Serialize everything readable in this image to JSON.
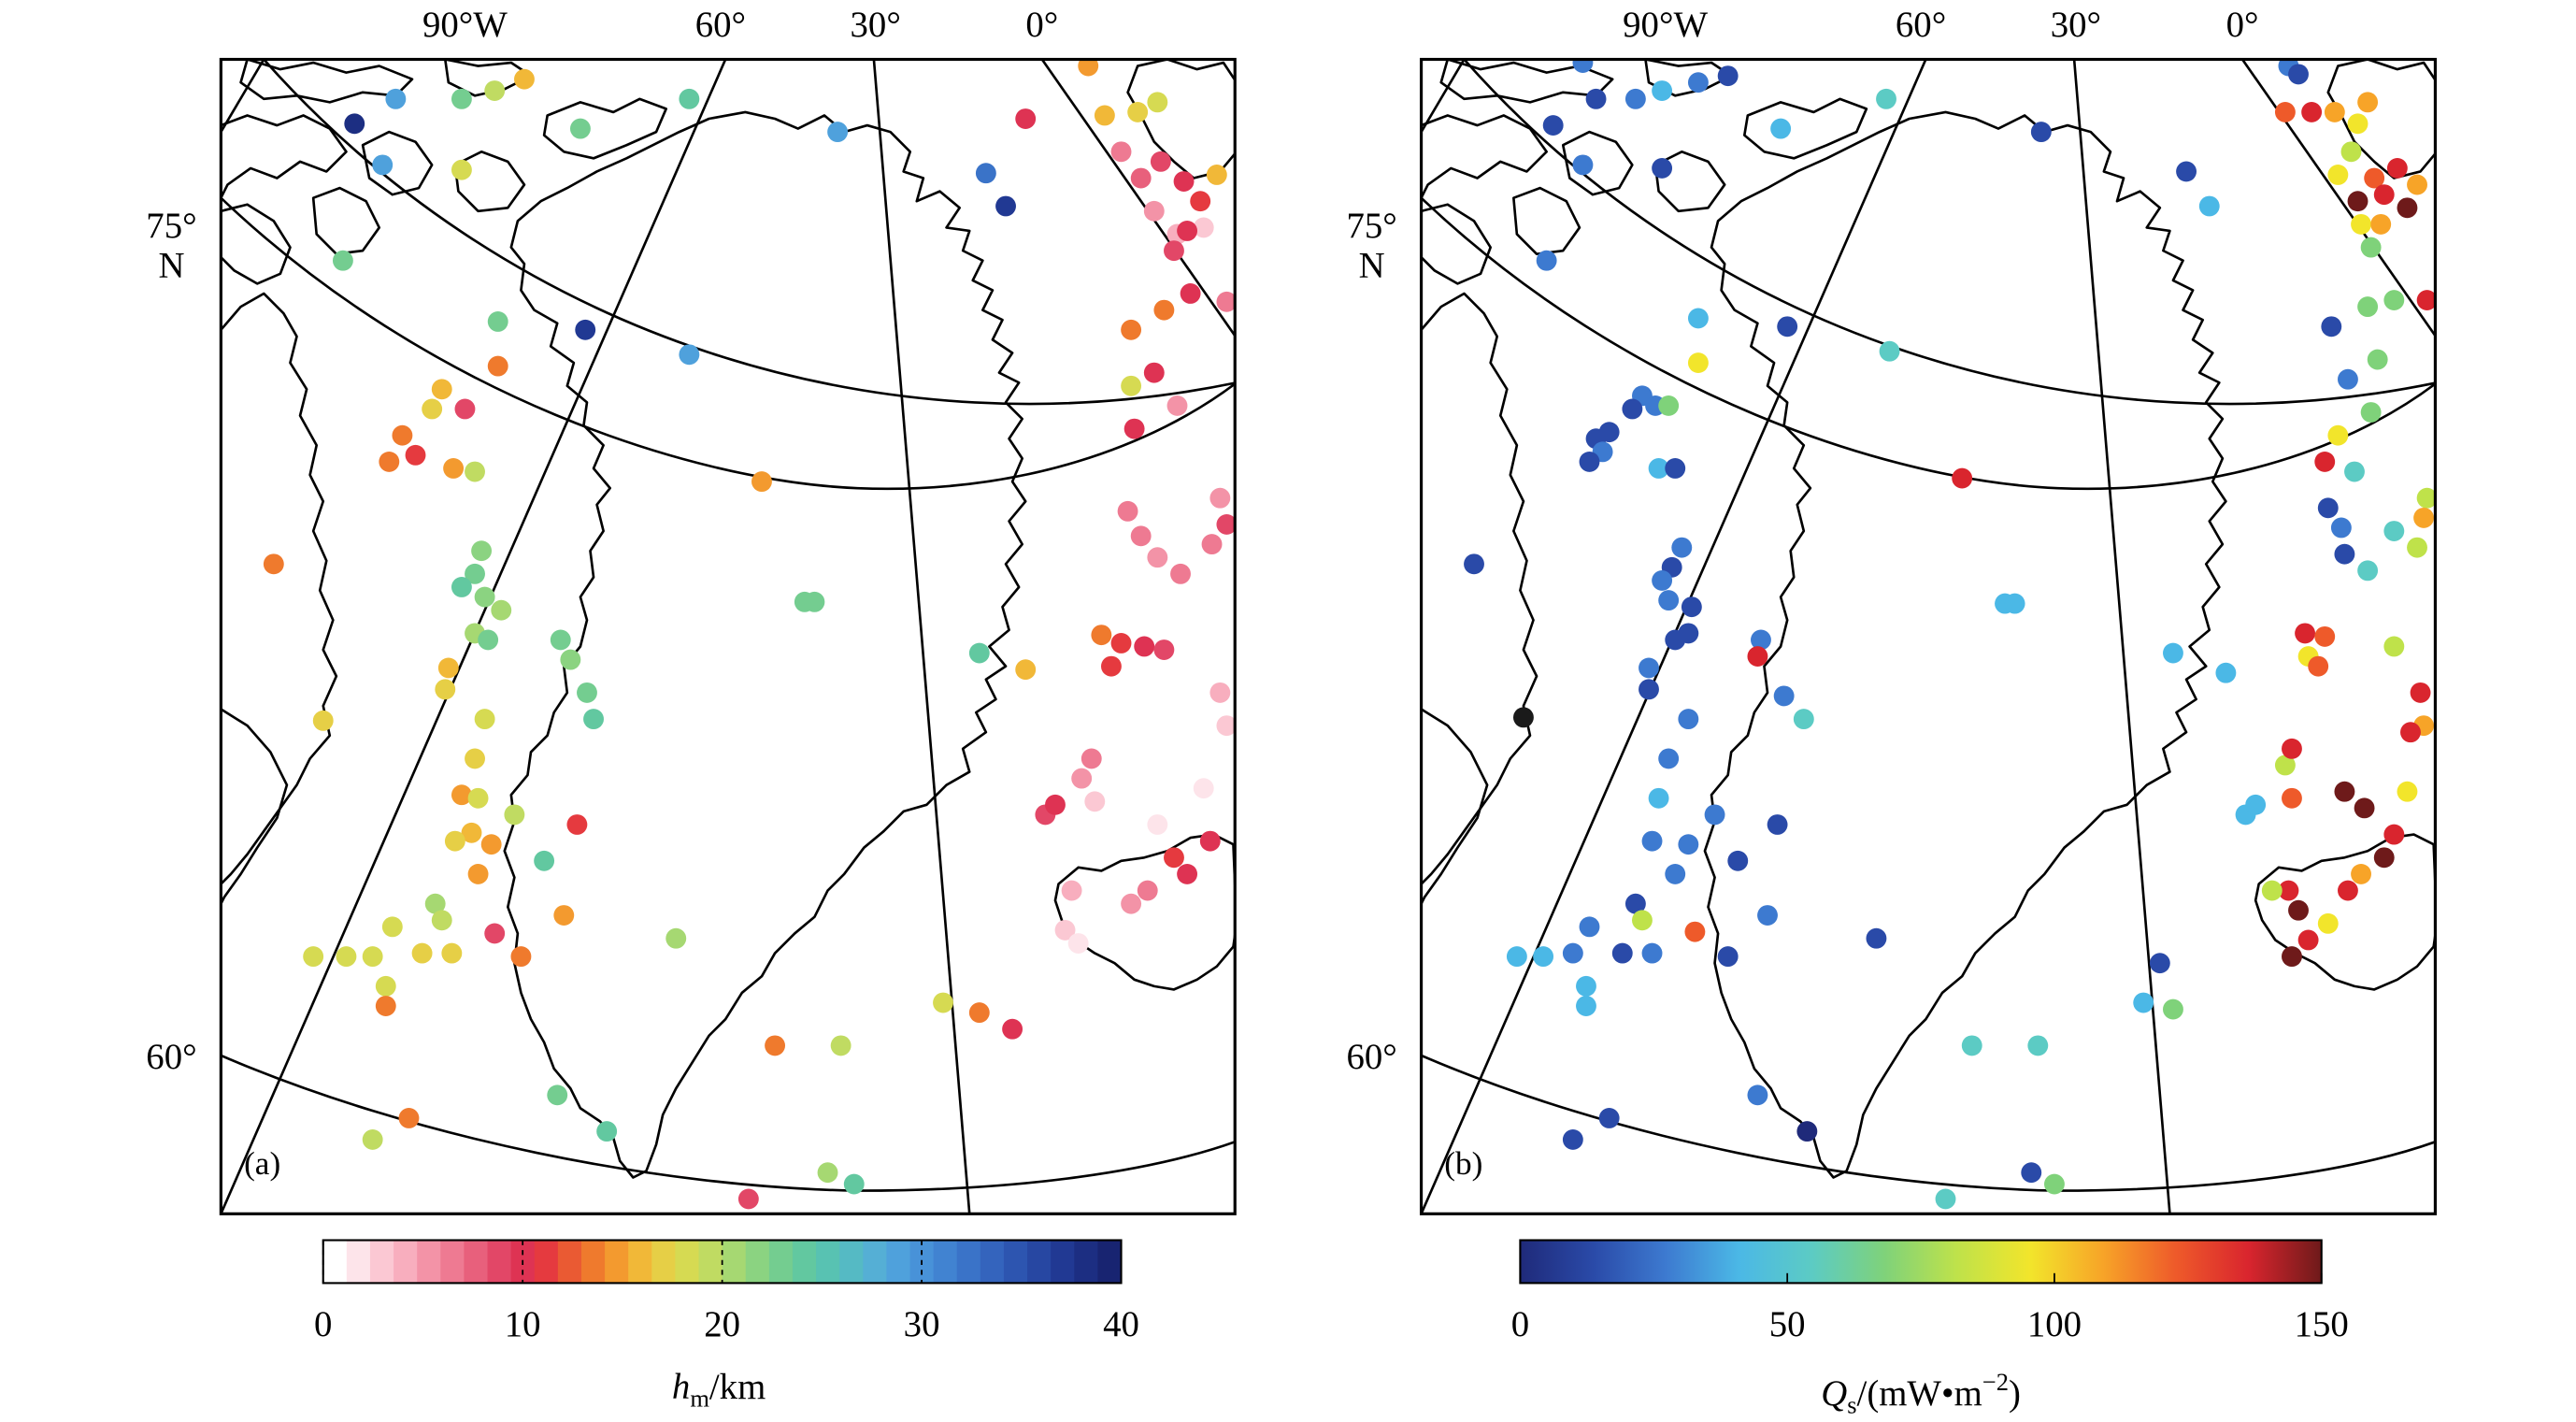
{
  "panels": [
    {
      "id": "a",
      "panel_label": "(a)",
      "top_labels": [
        "90°W",
        "60°",
        "30°",
        "0°"
      ],
      "lat_labels": [
        {
          "deg": "75°",
          "hemi": "N"
        },
        {
          "deg": "60°",
          "hemi": ""
        }
      ],
      "colorbar": {
        "type": "discrete",
        "min": 0,
        "max": 40,
        "ticks": [
          "0",
          "10",
          "20",
          "30",
          "40"
        ],
        "label_var": "h",
        "label_sub": "m",
        "label_unit": "/km",
        "colors": [
          "#ffffff",
          "#fde4ea",
          "#fbc8d3",
          "#f8aebe",
          "#f393a7",
          "#ee7a92",
          "#e8607c",
          "#e24767",
          "#de3353",
          "#e53a3f",
          "#ea5a33",
          "#ef7a2d",
          "#f39a2f",
          "#f1b838",
          "#e6cf46",
          "#d6da52",
          "#c0db62",
          "#a6d872",
          "#8bd381",
          "#74cd90",
          "#62c8a0",
          "#58c2b2",
          "#55bac4",
          "#55afd5",
          "#4fa1dc",
          "#4892d8",
          "#4183d1",
          "#3a73c8",
          "#3464bd",
          "#2d55b0",
          "#2747a2",
          "#213993",
          "#1c2e82",
          "#182471"
        ]
      }
    },
    {
      "id": "b",
      "panel_label": "(b)",
      "top_labels": [
        "90°W",
        "60°",
        "30°",
        "0°"
      ],
      "lat_labels": [
        {
          "deg": "75°",
          "hemi": "N"
        },
        {
          "deg": "60°",
          "hemi": ""
        }
      ],
      "colorbar": {
        "type": "continuous",
        "min": 0,
        "max": 150,
        "ticks": [
          "0",
          "50",
          "100",
          "150"
        ],
        "label_var": "Q",
        "label_sub": "s",
        "label_unit": "/(mW•m",
        "label_sup": "−2",
        "label_close": ")",
        "stops": [
          "#1f2a7a",
          "#2a4aa8",
          "#3d7ad0",
          "#4bb8e6",
          "#5ccbc4",
          "#7fd27a",
          "#bfe24a",
          "#f2e52b",
          "#f7a428",
          "#ee5a2a",
          "#d9252e",
          "#6e1a1a"
        ]
      }
    }
  ],
  "map_data": {
    "panel_a_points": [
      [
        215,
        75,
        "#1c2e82"
      ],
      [
        240,
        60,
        "#4fa1dc"
      ],
      [
        280,
        60,
        "#74cd90"
      ],
      [
        300,
        55,
        "#c0db62"
      ],
      [
        318,
        48,
        "#f1b838"
      ],
      [
        232,
        100,
        "#4fa1dc"
      ],
      [
        280,
        103,
        "#d6da52"
      ],
      [
        352,
        78,
        "#74cd90"
      ],
      [
        418,
        60,
        "#62c8a0"
      ],
      [
        508,
        80,
        "#4fa1dc"
      ],
      [
        622,
        72,
        "#de3353"
      ],
      [
        598,
        105,
        "#3a73c8"
      ],
      [
        610,
        125,
        "#213993"
      ],
      [
        660,
        40,
        "#f39a2f"
      ],
      [
        670,
        70,
        "#f1b838"
      ],
      [
        690,
        68,
        "#e6cf46"
      ],
      [
        702,
        62,
        "#d6da52"
      ],
      [
        680,
        92,
        "#ee7a92"
      ],
      [
        692,
        108,
        "#e8607c"
      ],
      [
        704,
        98,
        "#e24767"
      ],
      [
        718,
        110,
        "#de3353"
      ],
      [
        728,
        122,
        "#e53a3f"
      ],
      [
        738,
        106,
        "#f1b838"
      ],
      [
        700,
        128,
        "#f393a7"
      ],
      [
        714,
        142,
        "#f8aebe"
      ],
      [
        730,
        138,
        "#fbc8d3"
      ],
      [
        208,
        158,
        "#74cd90"
      ],
      [
        302,
        195,
        "#74cd90"
      ],
      [
        355,
        200,
        "#213993"
      ],
      [
        418,
        215,
        "#4fa1dc"
      ],
      [
        302,
        222,
        "#ef7a2d"
      ],
      [
        268,
        236,
        "#f1b838"
      ],
      [
        262,
        248,
        "#e6cf46"
      ],
      [
        282,
        248,
        "#e24767"
      ],
      [
        244,
        264,
        "#ef7a2d"
      ],
      [
        236,
        280,
        "#ef7a2d"
      ],
      [
        252,
        276,
        "#e53a3f"
      ],
      [
        275,
        284,
        "#f39a2f"
      ],
      [
        288,
        286,
        "#c0db62"
      ],
      [
        462,
        292,
        "#f39a2f"
      ],
      [
        720,
        140,
        "#de3353"
      ],
      [
        712,
        152,
        "#e24767"
      ],
      [
        706,
        188,
        "#ef7a2d"
      ],
      [
        722,
        178,
        "#de3353"
      ],
      [
        744,
        183,
        "#ee7a92"
      ],
      [
        686,
        200,
        "#ef7a2d"
      ],
      [
        700,
        226,
        "#de3353"
      ],
      [
        686,
        234,
        "#d6da52"
      ],
      [
        714,
        246,
        "#f393a7"
      ],
      [
        688,
        260,
        "#de3353"
      ],
      [
        684,
        310,
        "#ee7a92"
      ],
      [
        740,
        302,
        "#f393a7"
      ],
      [
        744,
        318,
        "#e24767"
      ],
      [
        735,
        330,
        "#ee7a92"
      ],
      [
        692,
        325,
        "#ee7a92"
      ],
      [
        702,
        338,
        "#f393a7"
      ],
      [
        716,
        348,
        "#ee7a92"
      ],
      [
        166,
        342,
        "#ef7a2d"
      ],
      [
        292,
        334,
        "#8bd381"
      ],
      [
        288,
        348,
        "#74cd90"
      ],
      [
        280,
        356,
        "#62c8a0"
      ],
      [
        294,
        362,
        "#8bd381"
      ],
      [
        304,
        370,
        "#a6d872"
      ],
      [
        288,
        384,
        "#a6d872"
      ],
      [
        296,
        388,
        "#74cd90"
      ],
      [
        488,
        365,
        "#74cd90"
      ],
      [
        494,
        365,
        "#74cd90"
      ],
      [
        340,
        388,
        "#74cd90"
      ],
      [
        346,
        400,
        "#8bd381"
      ],
      [
        668,
        385,
        "#ef7a2d"
      ],
      [
        680,
        390,
        "#e53a3f"
      ],
      [
        694,
        392,
        "#de3353"
      ],
      [
        706,
        394,
        "#e24767"
      ],
      [
        674,
        404,
        "#e53a3f"
      ],
      [
        272,
        405,
        "#f1b838"
      ],
      [
        270,
        418,
        "#e6cf46"
      ],
      [
        196,
        437,
        "#e6cf46"
      ],
      [
        294,
        436,
        "#d6da52"
      ],
      [
        356,
        420,
        "#74cd90"
      ],
      [
        360,
        436,
        "#62c8a0"
      ],
      [
        594,
        396,
        "#62c8a0"
      ],
      [
        622,
        406,
        "#f1b838"
      ],
      [
        740,
        420,
        "#f8aebe"
      ],
      [
        744,
        440,
        "#fbc8d3"
      ],
      [
        662,
        460,
        "#ee7a92"
      ],
      [
        656,
        472,
        "#f393a7"
      ],
      [
        634,
        494,
        "#e24767"
      ],
      [
        640,
        488,
        "#de3353"
      ],
      [
        730,
        478,
        "#fde4ea"
      ],
      [
        288,
        460,
        "#e6cf46"
      ],
      [
        280,
        482,
        "#f39a2f"
      ],
      [
        290,
        484,
        "#d6da52"
      ],
      [
        286,
        505,
        "#f1b838"
      ],
      [
        312,
        494,
        "#c0db62"
      ],
      [
        350,
        500,
        "#e53a3f"
      ],
      [
        276,
        510,
        "#e6cf46"
      ],
      [
        298,
        512,
        "#f39a2f"
      ],
      [
        290,
        530,
        "#f39a2f"
      ],
      [
        330,
        522,
        "#62c8a0"
      ],
      [
        664,
        486,
        "#fbc8d3"
      ],
      [
        702,
        500,
        "#fde4ea"
      ],
      [
        712,
        520,
        "#e53a3f"
      ],
      [
        720,
        530,
        "#de3353"
      ],
      [
        734,
        510,
        "#de3353"
      ],
      [
        696,
        540,
        "#ee7a92"
      ],
      [
        686,
        548,
        "#f393a7"
      ],
      [
        650,
        540,
        "#f8aebe"
      ],
      [
        646,
        564,
        "#fbc8d3"
      ],
      [
        654,
        572,
        "#fde4ea"
      ],
      [
        264,
        548,
        "#a6d872"
      ],
      [
        268,
        558,
        "#c0db62"
      ],
      [
        238,
        562,
        "#d6da52"
      ],
      [
        256,
        578,
        "#e6cf46"
      ],
      [
        274,
        578,
        "#e6cf46"
      ],
      [
        300,
        566,
        "#e24767"
      ],
      [
        342,
        555,
        "#f39a2f"
      ],
      [
        316,
        580,
        "#ef7a2d"
      ],
      [
        190,
        580,
        "#d6da52"
      ],
      [
        210,
        580,
        "#d6da52"
      ],
      [
        226,
        580,
        "#d6da52"
      ],
      [
        234,
        598,
        "#d6da52"
      ],
      [
        234,
        610,
        "#ef7a2d"
      ],
      [
        410,
        569,
        "#a6d872"
      ],
      [
        572,
        608,
        "#d6da52"
      ],
      [
        594,
        614,
        "#ef7a2d"
      ],
      [
        614,
        624,
        "#de3353"
      ],
      [
        470,
        634,
        "#ef7a2d"
      ],
      [
        510,
        634,
        "#c0db62"
      ],
      [
        338,
        664,
        "#74cd90"
      ],
      [
        368,
        686,
        "#62c8a0"
      ],
      [
        248,
        678,
        "#ef7a2d"
      ],
      [
        226,
        691,
        "#c0db62"
      ],
      [
        502,
        711,
        "#a6d872"
      ],
      [
        518,
        718,
        "#62c8a0"
      ],
      [
        454,
        727,
        "#e24767"
      ]
    ],
    "panel_b_points": [
      [
        960,
        38,
        "#3d7ad0"
      ],
      [
        992,
        60,
        "#3d7ad0"
      ],
      [
        1008,
        55,
        "#4bb8e6"
      ],
      [
        1030,
        50,
        "#3d7ad0"
      ],
      [
        1048,
        46,
        "#2a4aa8"
      ],
      [
        942,
        76,
        "#2a4aa8"
      ],
      [
        968,
        60,
        "#2a4aa8"
      ],
      [
        960,
        100,
        "#3d7ad0"
      ],
      [
        1008,
        102,
        "#2a4aa8"
      ],
      [
        1080,
        78,
        "#4bb8e6"
      ],
      [
        1144,
        60,
        "#5ccbc4"
      ],
      [
        1238,
        80,
        "#2a4aa8"
      ],
      [
        1388,
        40,
        "#3d7ad0"
      ],
      [
        1394,
        45,
        "#2a4aa8"
      ],
      [
        1386,
        68,
        "#ee5a2a"
      ],
      [
        1402,
        68,
        "#d9252e"
      ],
      [
        1416,
        68,
        "#f7a428"
      ],
      [
        1430,
        75,
        "#f2e52b"
      ],
      [
        1436,
        62,
        "#f7a428"
      ],
      [
        1426,
        92,
        "#bfe24a"
      ],
      [
        1418,
        106,
        "#f2e52b"
      ],
      [
        1440,
        108,
        "#ee5a2a"
      ],
      [
        1454,
        102,
        "#d9252e"
      ],
      [
        1466,
        112,
        "#f7a428"
      ],
      [
        1430,
        122,
        "#6e1a1a"
      ],
      [
        1446,
        118,
        "#d9252e"
      ],
      [
        1460,
        126,
        "#6e1a1a"
      ],
      [
        1326,
        104,
        "#2a4aa8"
      ],
      [
        1340,
        125,
        "#4bb8e6"
      ],
      [
        1432,
        136,
        "#f2e52b"
      ],
      [
        1444,
        136,
        "#f7a428"
      ],
      [
        1438,
        150,
        "#7fd27a"
      ],
      [
        938,
        158,
        "#3d7ad0"
      ],
      [
        1030,
        193,
        "#4bb8e6"
      ],
      [
        1084,
        198,
        "#2a4aa8"
      ],
      [
        1146,
        213,
        "#5ccbc4"
      ],
      [
        1030,
        220,
        "#f2e52b"
      ],
      [
        1436,
        186,
        "#7fd27a"
      ],
      [
        1452,
        182,
        "#7fd27a"
      ],
      [
        1472,
        182,
        "#d9252e"
      ],
      [
        1414,
        198,
        "#2a4aa8"
      ],
      [
        1442,
        218,
        "#7fd27a"
      ],
      [
        1424,
        230,
        "#3d7ad0"
      ],
      [
        1438,
        250,
        "#7fd27a"
      ],
      [
        1418,
        264,
        "#f2e52b"
      ],
      [
        1410,
        280,
        "#d9252e"
      ],
      [
        1428,
        286,
        "#5ccbc4"
      ],
      [
        1472,
        302,
        "#bfe24a"
      ],
      [
        1470,
        314,
        "#f7a428"
      ],
      [
        1412,
        308,
        "#2a4aa8"
      ],
      [
        1420,
        320,
        "#3d7ad0"
      ],
      [
        1452,
        322,
        "#5ccbc4"
      ],
      [
        1466,
        332,
        "#bfe24a"
      ],
      [
        1422,
        336,
        "#2a4aa8"
      ],
      [
        1436,
        346,
        "#5ccbc4"
      ],
      [
        996,
        240,
        "#3d7ad0"
      ],
      [
        990,
        248,
        "#2a4aa8"
      ],
      [
        1004,
        246,
        "#3d7ad0"
      ],
      [
        1012,
        246,
        "#7fd27a"
      ],
      [
        976,
        262,
        "#2a4aa8"
      ],
      [
        968,
        266,
        "#2a4aa8"
      ],
      [
        972,
        274,
        "#3d7ad0"
      ],
      [
        964,
        280,
        "#2a4aa8"
      ],
      [
        1006,
        284,
        "#4bb8e6"
      ],
      [
        1016,
        284,
        "#2a4aa8"
      ],
      [
        1190,
        290,
        "#d9252e"
      ],
      [
        894,
        342,
        "#2a4aa8"
      ],
      [
        1020,
        332,
        "#3d7ad0"
      ],
      [
        1014,
        344,
        "#2a4aa8"
      ],
      [
        1008,
        352,
        "#3d7ad0"
      ],
      [
        1012,
        364,
        "#3d7ad0"
      ],
      [
        1026,
        368,
        "#2a4aa8"
      ],
      [
        1216,
        366,
        "#4bb8e6"
      ],
      [
        1222,
        366,
        "#4bb8e6"
      ],
      [
        1068,
        388,
        "#3d7ad0"
      ],
      [
        1066,
        398,
        "#d9252e"
      ],
      [
        1024,
        384,
        "#2a4aa8"
      ],
      [
        1016,
        388,
        "#2a4aa8"
      ],
      [
        1398,
        384,
        "#d9252e"
      ],
      [
        1410,
        386,
        "#ee5a2a"
      ],
      [
        1400,
        398,
        "#f2e52b"
      ],
      [
        1452,
        392,
        "#bfe24a"
      ],
      [
        1318,
        396,
        "#4bb8e6"
      ],
      [
        1350,
        408,
        "#4bb8e6"
      ],
      [
        1406,
        404,
        "#ee5a2a"
      ],
      [
        1000,
        405,
        "#3d7ad0"
      ],
      [
        1000,
        418,
        "#2a4aa8"
      ],
      [
        924,
        435,
        "#1a1a1a"
      ],
      [
        1024,
        436,
        "#3d7ad0"
      ],
      [
        1082,
        422,
        "#3d7ad0"
      ],
      [
        1094,
        436,
        "#5ccbc4"
      ],
      [
        1468,
        420,
        "#d9252e"
      ],
      [
        1470,
        440,
        "#f7a428"
      ],
      [
        1462,
        444,
        "#d9252e"
      ],
      [
        1386,
        464,
        "#bfe24a"
      ],
      [
        1390,
        454,
        "#d9252e"
      ],
      [
        1362,
        494,
        "#4bb8e6"
      ],
      [
        1368,
        488,
        "#4bb8e6"
      ],
      [
        1422,
        480,
        "#6e1a1a"
      ],
      [
        1434,
        490,
        "#6e1a1a"
      ],
      [
        1460,
        480,
        "#f2e52b"
      ],
      [
        1012,
        460,
        "#3d7ad0"
      ],
      [
        1006,
        484,
        "#4bb8e6"
      ],
      [
        1040,
        494,
        "#3d7ad0"
      ],
      [
        1078,
        500,
        "#2a4aa8"
      ],
      [
        1002,
        510,
        "#3d7ad0"
      ],
      [
        1024,
        512,
        "#3d7ad0"
      ],
      [
        1016,
        530,
        "#3d7ad0"
      ],
      [
        1054,
        522,
        "#2a4aa8"
      ],
      [
        1390,
        484,
        "#ee5a2a"
      ],
      [
        1452,
        506,
        "#d9252e"
      ],
      [
        1446,
        520,
        "#6e1a1a"
      ],
      [
        1432,
        530,
        "#f7a428"
      ],
      [
        1424,
        540,
        "#d9252e"
      ],
      [
        1388,
        540,
        "#d9252e"
      ],
      [
        1394,
        552,
        "#6e1a1a"
      ],
      [
        1412,
        560,
        "#f2e52b"
      ],
      [
        1400,
        570,
        "#d9252e"
      ],
      [
        1390,
        580,
        "#6e1a1a"
      ],
      [
        1378,
        540,
        "#bfe24a"
      ],
      [
        992,
        548,
        "#2a4aa8"
      ],
      [
        996,
        558,
        "#bfe24a"
      ],
      [
        964,
        562,
        "#3d7ad0"
      ],
      [
        984,
        578,
        "#2a4aa8"
      ],
      [
        1002,
        578,
        "#3d7ad0"
      ],
      [
        1028,
        565,
        "#ee5a2a"
      ],
      [
        1072,
        555,
        "#3d7ad0"
      ],
      [
        1048,
        580,
        "#2a4aa8"
      ],
      [
        920,
        580,
        "#4bb8e6"
      ],
      [
        936,
        580,
        "#4bb8e6"
      ],
      [
        954,
        578,
        "#3d7ad0"
      ],
      [
        962,
        598,
        "#4bb8e6"
      ],
      [
        962,
        610,
        "#4bb8e6"
      ],
      [
        1138,
        569,
        "#2a4aa8"
      ],
      [
        1300,
        608,
        "#4bb8e6"
      ],
      [
        1318,
        612,
        "#7fd27a"
      ],
      [
        1310,
        584,
        "#2a4aa8"
      ],
      [
        1196,
        634,
        "#5ccbc4"
      ],
      [
        1236,
        634,
        "#5ccbc4"
      ],
      [
        1066,
        664,
        "#3d7ad0"
      ],
      [
        1096,
        686,
        "#1f2a7a"
      ],
      [
        976,
        678,
        "#2a4aa8"
      ],
      [
        954,
        691,
        "#2a4aa8"
      ],
      [
        1232,
        711,
        "#2a4aa8"
      ],
      [
        1246,
        718,
        "#7fd27a"
      ],
      [
        1180,
        727,
        "#5ccbc4"
      ]
    ]
  }
}
